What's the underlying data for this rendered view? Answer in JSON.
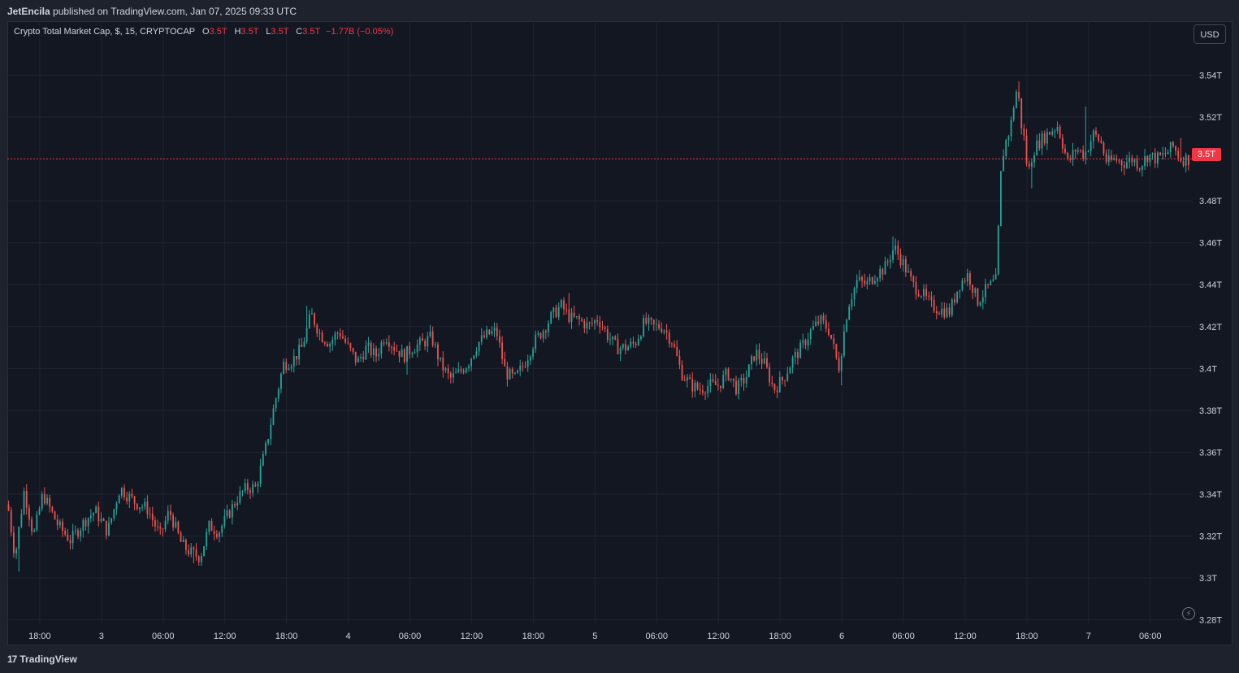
{
  "publish": {
    "author": "JetEncila",
    "text": " published on TradingView.com, Jan 07, 2025 09:33 UTC"
  },
  "legend": {
    "symbol": "Crypto Total Market Cap, $, 15, CRYPTOCAP",
    "o_label": "O",
    "o_value": "3.5T",
    "h_label": "H",
    "h_value": "3.5T",
    "l_label": "L",
    "l_value": "3.5T",
    "c_label": "C",
    "c_value": "3.5T",
    "change": "−1.77B (−0.05%)"
  },
  "currency_button": "USD",
  "last_price_label": "3.5T",
  "footer": {
    "logo_mark": "17",
    "brand": "TradingView"
  },
  "colors": {
    "up": "#26a69a",
    "down": "#ef5350",
    "background": "#131722",
    "grid": "#1f2430",
    "last_price_line": "#f23645"
  },
  "chart_data": {
    "type": "candlestick",
    "symbol": "Crypto Total Market Cap",
    "interval": "15",
    "y_ticks": [
      {
        "label": "3.54T",
        "value": 3.54
      },
      {
        "label": "3.52T",
        "value": 3.52
      },
      {
        "label": "3.48T",
        "value": 3.48
      },
      {
        "label": "3.46T",
        "value": 3.46
      },
      {
        "label": "3.44T",
        "value": 3.44
      },
      {
        "label": "3.42T",
        "value": 3.42
      },
      {
        "label": "3.4T",
        "value": 3.4
      },
      {
        "label": "3.38T",
        "value": 3.38
      },
      {
        "label": "3.36T",
        "value": 3.36
      },
      {
        "label": "3.34T",
        "value": 3.34
      },
      {
        "label": "3.32T",
        "value": 3.32
      },
      {
        "label": "3.3T",
        "value": 3.3
      },
      {
        "label": "3.28T",
        "value": 3.28
      }
    ],
    "ylim": [
      3.2783,
      3.5658
    ],
    "x_ticks": [
      {
        "label": "18:00",
        "hours": 0
      },
      {
        "label": "3",
        "hours": 6
      },
      {
        "label": "06:00",
        "hours": 12
      },
      {
        "label": "12:00",
        "hours": 18
      },
      {
        "label": "18:00",
        "hours": 24
      },
      {
        "label": "4",
        "hours": 30
      },
      {
        "label": "06:00",
        "hours": 36
      },
      {
        "label": "12:00",
        "hours": 42
      },
      {
        "label": "18:00",
        "hours": 48
      },
      {
        "label": "5",
        "hours": 54
      },
      {
        "label": "06:00",
        "hours": 60
      },
      {
        "label": "12:00",
        "hours": 66
      },
      {
        "label": "18:00",
        "hours": 72
      },
      {
        "label": "6",
        "hours": 78
      },
      {
        "label": "06:00",
        "hours": 84
      },
      {
        "label": "12:00",
        "hours": 90
      },
      {
        "label": "18:00",
        "hours": 96
      },
      {
        "label": "7",
        "hours": 102
      },
      {
        "label": "06:00",
        "hours": 108
      }
    ],
    "xlim_hours": [
      -3.15,
      112.05
    ],
    "last_price": 3.5,
    "candle_interval_hours": 0.25,
    "close_path": [
      [
        -3.1,
        3.335
      ],
      [
        -2.4,
        3.31
      ],
      [
        -1.5,
        3.342
      ],
      [
        -0.6,
        3.32
      ],
      [
        0.3,
        3.34
      ],
      [
        1.8,
        3.325
      ],
      [
        3.0,
        3.318
      ],
      [
        4.5,
        3.328
      ],
      [
        5.4,
        3.332
      ],
      [
        6.6,
        3.322
      ],
      [
        7.8,
        3.343
      ],
      [
        9.3,
        3.336
      ],
      [
        10.5,
        3.333
      ],
      [
        11.7,
        3.32
      ],
      [
        12.6,
        3.332
      ],
      [
        13.8,
        3.316
      ],
      [
        14.7,
        3.312
      ],
      [
        15.6,
        3.31
      ],
      [
        16.5,
        3.325
      ],
      [
        17.4,
        3.322
      ],
      [
        18.3,
        3.33
      ],
      [
        19.2,
        3.338
      ],
      [
        20.1,
        3.343
      ],
      [
        21.0,
        3.343
      ],
      [
        21.9,
        3.36
      ],
      [
        22.8,
        3.382
      ],
      [
        23.7,
        3.402
      ],
      [
        24.6,
        3.404
      ],
      [
        25.5,
        3.41
      ],
      [
        26.4,
        3.426
      ],
      [
        27.3,
        3.416
      ],
      [
        28.2,
        3.412
      ],
      [
        29.1,
        3.418
      ],
      [
        30.0,
        3.41
      ],
      [
        30.9,
        3.403
      ],
      [
        31.8,
        3.41
      ],
      [
        32.7,
        3.406
      ],
      [
        33.6,
        3.416
      ],
      [
        34.5,
        3.41
      ],
      [
        35.4,
        3.406
      ],
      [
        36.3,
        3.41
      ],
      [
        37.2,
        3.412
      ],
      [
        38.1,
        3.415
      ],
      [
        39.0,
        3.402
      ],
      [
        39.9,
        3.395
      ],
      [
        40.8,
        3.398
      ],
      [
        41.7,
        3.403
      ],
      [
        42.6,
        3.412
      ],
      [
        43.5,
        3.416
      ],
      [
        44.4,
        3.418
      ],
      [
        45.3,
        3.398
      ],
      [
        46.2,
        3.395
      ],
      [
        47.1,
        3.402
      ],
      [
        48.0,
        3.412
      ],
      [
        48.9,
        3.418
      ],
      [
        49.8,
        3.425
      ],
      [
        50.7,
        3.43
      ],
      [
        51.6,
        3.424
      ],
      [
        52.5,
        3.423
      ],
      [
        53.4,
        3.42
      ],
      [
        54.3,
        3.424
      ],
      [
        55.2,
        3.416
      ],
      [
        56.1,
        3.41
      ],
      [
        57.0,
        3.41
      ],
      [
        57.9,
        3.412
      ],
      [
        58.8,
        3.422
      ],
      [
        59.7,
        3.42
      ],
      [
        60.6,
        3.42
      ],
      [
        61.5,
        3.413
      ],
      [
        62.4,
        3.398
      ],
      [
        63.3,
        3.392
      ],
      [
        64.2,
        3.39
      ],
      [
        65.1,
        3.392
      ],
      [
        66.0,
        3.392
      ],
      [
        66.9,
        3.398
      ],
      [
        67.8,
        3.39
      ],
      [
        68.7,
        3.396
      ],
      [
        69.6,
        3.408
      ],
      [
        70.5,
        3.402
      ],
      [
        71.4,
        3.39
      ],
      [
        72.3,
        3.395
      ],
      [
        73.2,
        3.404
      ],
      [
        74.1,
        3.41
      ],
      [
        75.0,
        3.418
      ],
      [
        75.9,
        3.423
      ],
      [
        76.8,
        3.418
      ],
      [
        77.7,
        3.4
      ],
      [
        78.6,
        3.43
      ],
      [
        79.5,
        3.442
      ],
      [
        80.4,
        3.44
      ],
      [
        81.3,
        3.445
      ],
      [
        82.2,
        3.448
      ],
      [
        83.1,
        3.458
      ],
      [
        84.0,
        3.45
      ],
      [
        84.9,
        3.44
      ],
      [
        85.8,
        3.436
      ],
      [
        86.7,
        3.43
      ],
      [
        87.6,
        3.428
      ],
      [
        88.5,
        3.427
      ],
      [
        89.4,
        3.44
      ],
      [
        90.3,
        3.445
      ],
      [
        91.2,
        3.432
      ],
      [
        92.1,
        3.438
      ],
      [
        93.0,
        3.442
      ],
      [
        93.5,
        3.495
      ],
      [
        93.8,
        3.506
      ],
      [
        94.4,
        3.515
      ],
      [
        94.8,
        3.528
      ],
      [
        95.1,
        3.535
      ],
      [
        95.4,
        3.518
      ],
      [
        95.8,
        3.508
      ],
      [
        96.1,
        3.492
      ],
      [
        96.6,
        3.504
      ],
      [
        97.2,
        3.508
      ],
      [
        98.0,
        3.512
      ],
      [
        99.0,
        3.516
      ],
      [
        100.0,
        3.498
      ],
      [
        100.8,
        3.505
      ],
      [
        101.6,
        3.502
      ],
      [
        102.5,
        3.512
      ],
      [
        103.2,
        3.508
      ],
      [
        103.8,
        3.498
      ],
      [
        104.6,
        3.5
      ],
      [
        105.4,
        3.498
      ],
      [
        106.2,
        3.5
      ],
      [
        107.0,
        3.497
      ],
      [
        107.8,
        3.502
      ],
      [
        108.6,
        3.5
      ],
      [
        109.4,
        3.502
      ],
      [
        110.2,
        3.506
      ],
      [
        111.0,
        3.5
      ],
      [
        111.9,
        3.5
      ]
    ],
    "extremes": [
      [
        -2.1,
        3.303
      ],
      [
        14.9,
        3.307
      ],
      [
        25.9,
        3.43
      ],
      [
        35.8,
        3.397
      ],
      [
        44.6,
        3.392
      ],
      [
        51.4,
        3.436
      ],
      [
        69.1,
        3.376
      ],
      [
        77.9,
        3.392
      ],
      [
        83.0,
        3.463
      ],
      [
        93.6,
        3.421
      ],
      [
        95.2,
        3.537
      ],
      [
        96.5,
        3.486
      ],
      [
        101.7,
        3.525
      ],
      [
        111.0,
        3.51
      ]
    ]
  }
}
